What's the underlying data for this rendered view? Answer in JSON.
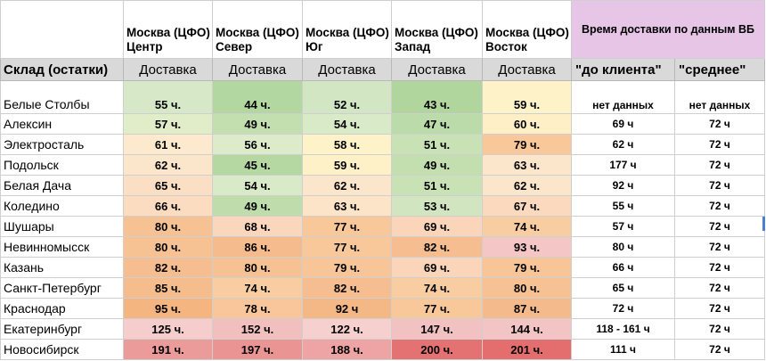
{
  "header": {
    "warehouses": [
      "Москва (ЦФО) Центр",
      "Москва (ЦФО) Север",
      "Москва (ЦФО) Юг",
      "Москва (ЦФО) Запад",
      "Москва (ЦФО) Восток"
    ],
    "wb_title": "Время доставки по данным ВБ"
  },
  "subheader": {
    "stock_label": "Склад (остатки)",
    "delivery_label": "Доставка",
    "to_client": "\"до клиента\"",
    "average": "\"среднее\""
  },
  "rows": [
    {
      "city": "Белые Столбы",
      "vals": [
        "55 ч.",
        "44 ч.",
        "52 ч.",
        "43 ч.",
        "59 ч."
      ],
      "wb_client": "нет данных",
      "wb_avg": "нет данных",
      "colors": [
        "#d6e8c7",
        "#b3d7a0",
        "#d2e6c3",
        "#b0d59d",
        "#fef2c9"
      ]
    },
    {
      "city": "Алексин",
      "vals": [
        "57 ч.",
        "49 ч.",
        "54 ч.",
        "47 ч.",
        "60 ч."
      ],
      "wb_client": "69 ч",
      "wb_avg": "72 ч",
      "colors": [
        "#e1edc9",
        "#c3dfb0",
        "#d8eac7",
        "#bcdbaa",
        "#feefc6"
      ]
    },
    {
      "city": "Электросталь",
      "vals": [
        "61 ч.",
        "56 ч.",
        "58 ч.",
        "51 ч.",
        "79 ч."
      ],
      "wb_client": "62 ч",
      "wb_avg": "72 ч",
      "colors": [
        "#fde9cd",
        "#deebca",
        "#fef2c9",
        "#c8e2b6",
        "#f8c79a"
      ]
    },
    {
      "city": "Подольск",
      "vals": [
        "62 ч.",
        "45 ч.",
        "59 ч.",
        "49 ч.",
        "63 ч."
      ],
      "wb_client": "177 ч",
      "wb_avg": "72 ч",
      "colors": [
        "#fce6cb",
        "#b5d8a2",
        "#fef0c7",
        "#c3dfb0",
        "#fce6cb"
      ]
    },
    {
      "city": "Белая Дача",
      "vals": [
        "65 ч.",
        "54 ч.",
        "62 ч.",
        "51 ч.",
        "62 ч."
      ],
      "wb_client": "92 ч",
      "wb_avg": "72 ч",
      "colors": [
        "#fbdfc4",
        "#d8eac7",
        "#fce6cb",
        "#c8e2b6",
        "#fce6cb"
      ]
    },
    {
      "city": "Коледино",
      "vals": [
        "66 ч.",
        "49 ч.",
        "63 ч.",
        "53 ч.",
        "67 ч."
      ],
      "wb_client": "55 ч",
      "wb_avg": "72 ч",
      "colors": [
        "#fbdcc1",
        "#bfdcac",
        "#fce4c9",
        "#d0e5c0",
        "#fad9bf"
      ]
    },
    {
      "city": "Шушары",
      "vals": [
        "80 ч.",
        "68 ч.",
        "77 ч.",
        "69 ч.",
        "74 ч."
      ],
      "wb_client": "57 ч",
      "wb_avg": "72 ч",
      "colors": [
        "#f6c294",
        "#fad7bc",
        "#f8c89b",
        "#fad5ba",
        "#f9cda2"
      ]
    },
    {
      "city": "Невинномысск",
      "vals": [
        "80 ч.",
        "86 ч.",
        "77 ч.",
        "82 ч.",
        "93 ч."
      ],
      "wb_client": "80 ч",
      "wb_avg": "72 ч",
      "colors": [
        "#f6c294",
        "#f5bb8d",
        "#f8c89b",
        "#f6be90",
        "#f4c6c6"
      ]
    },
    {
      "city": "Казань",
      "vals": [
        "82 ч.",
        "80 ч.",
        "79 ч.",
        "69 ч.",
        "79 ч."
      ],
      "wb_client": "66 ч",
      "wb_avg": "72 ч",
      "colors": [
        "#f6be90",
        "#f6c294",
        "#f7c597",
        "#fad5ba",
        "#f7c597"
      ]
    },
    {
      "city": "Санкт-Петербург",
      "vals": [
        "85 ч.",
        "74 ч.",
        "82 ч.",
        "74 ч.",
        "80 ч."
      ],
      "wb_client": "65 ч",
      "wb_avg": "72 ч",
      "colors": [
        "#f5bc8e",
        "#f9cda2",
        "#f6be90",
        "#f9cda2",
        "#f6c294"
      ]
    },
    {
      "city": "Краснодар",
      "vals": [
        "95 ч.",
        "78 ч.",
        "92 ч",
        "77 ч.",
        "87 ч."
      ],
      "wb_client": "72 ч",
      "wb_avg": "72 ч",
      "colors": [
        "#f4b581",
        "#f8c69a",
        "#f4b887",
        "#f8c89b",
        "#f5ba8c"
      ]
    },
    {
      "city": "Екатеринбург",
      "vals": [
        "125 ч.",
        "152 ч.",
        "122 ч.",
        "147 ч.",
        "144 ч."
      ],
      "wb_client": "118 - 161 ч",
      "wb_avg": "72 ч",
      "colors": [
        "#f5cdcd",
        "#f2bfbf",
        "#f6cfcf",
        "#f2c1c1",
        "#f3c4c4"
      ]
    },
    {
      "city": "Новосибирск",
      "vals": [
        "191 ч.",
        "197 ч.",
        "188 ч.",
        "200 ч.",
        "201 ч."
      ],
      "wb_client": "111 ч",
      "wb_avg": "72 ч",
      "colors": [
        "#ec9b9b",
        "#ea9494",
        "#eea4a4",
        "#e57272",
        "#e46e6e"
      ]
    }
  ]
}
